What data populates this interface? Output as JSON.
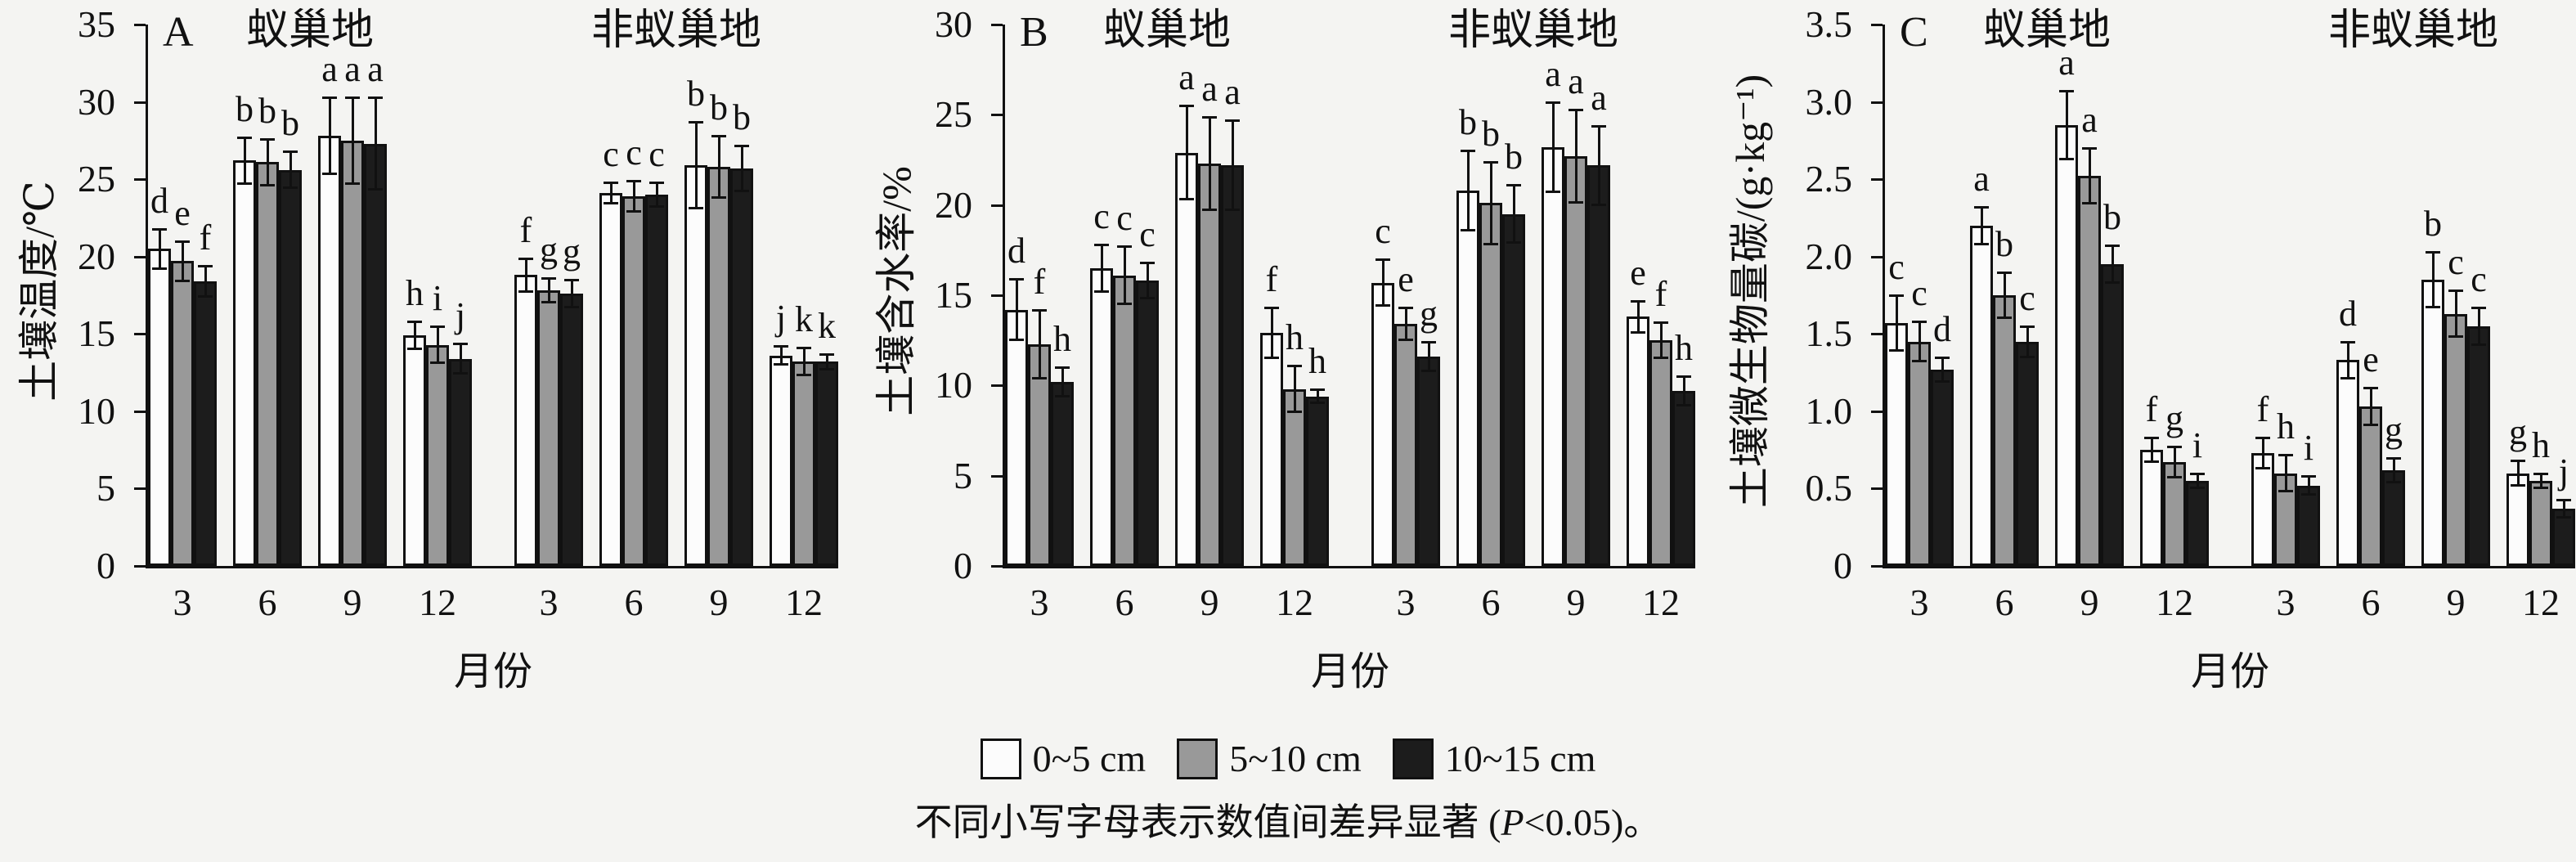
{
  "figure": {
    "background": "#f4f4f2",
    "xlabel": "月份",
    "legend": [
      {
        "label": "0~5 cm",
        "color": "#fcfcfc"
      },
      {
        "label": "5~10 cm",
        "color": "#999999"
      },
      {
        "label": "10~15 cm",
        "color": "#1c1c1c"
      }
    ],
    "caption": {
      "prefix": "不同小写字母表示数值间差异显著 (",
      "p": "P",
      "suffix": "<0.05)。"
    }
  },
  "chart_data": [
    {
      "type": "bar",
      "panel": "A",
      "ylabel": "土壤温度/℃",
      "xlabel": "月份",
      "ylim": [
        0,
        35
      ],
      "ytick_values": [
        0,
        5,
        10,
        15,
        20,
        25,
        30,
        35
      ],
      "ytick_labels": [
        "0",
        "5",
        "10",
        "15",
        "20",
        "25",
        "30",
        "35"
      ],
      "depths": [
        "0~5 cm",
        "5~10 cm",
        "10~15 cm"
      ],
      "sites": [
        {
          "label": "蚁巢地",
          "groups": [
            {
              "month": "3",
              "values": [
                20.5,
                19.7,
                18.4
              ],
              "errors": [
                1.3,
                1.3,
                1.0
              ],
              "letters": [
                "d",
                "e",
                "f"
              ]
            },
            {
              "month": "6",
              "values": [
                26.2,
                26.1,
                25.6
              ],
              "errors": [
                1.5,
                1.5,
                1.2
              ],
              "letters": [
                "b",
                "b",
                "b"
              ]
            },
            {
              "month": "9",
              "values": [
                27.8,
                27.5,
                27.3
              ],
              "errors": [
                2.5,
                2.8,
                3.0
              ],
              "letters": [
                "a",
                "a",
                "a"
              ]
            },
            {
              "month": "12",
              "values": [
                14.9,
                14.3,
                13.4
              ],
              "errors": [
                0.9,
                1.2,
                1.0
              ],
              "letters": [
                "h",
                "i",
                "j"
              ]
            }
          ]
        },
        {
          "label": "非蚁巢地",
          "groups": [
            {
              "month": "3",
              "values": [
                18.8,
                17.8,
                17.6
              ],
              "errors": [
                1.1,
                0.8,
                0.9
              ],
              "letters": [
                "f",
                "g",
                "g"
              ]
            },
            {
              "month": "6",
              "values": [
                24.1,
                23.9,
                24.0
              ],
              "errors": [
                0.7,
                1.0,
                0.8
              ],
              "letters": [
                "c",
                "c",
                "c"
              ]
            },
            {
              "month": "9",
              "values": [
                25.9,
                25.8,
                25.7
              ],
              "errors": [
                2.8,
                2.0,
                1.5
              ],
              "letters": [
                "b",
                "b",
                "b"
              ]
            },
            {
              "month": "12",
              "values": [
                13.6,
                13.2,
                13.2
              ],
              "errors": [
                0.6,
                0.9,
                0.5
              ],
              "letters": [
                "j",
                "k",
                "k"
              ]
            }
          ]
        }
      ]
    },
    {
      "type": "bar",
      "panel": "B",
      "ylabel": "土壤含水率/%",
      "xlabel": "月份",
      "ylim": [
        0,
        30
      ],
      "ytick_values": [
        0,
        5,
        10,
        15,
        20,
        25,
        30
      ],
      "ytick_labels": [
        "0",
        "5",
        "10",
        "15",
        "20",
        "25",
        "30"
      ],
      "depths": [
        "0~5 cm",
        "5~10 cm",
        "10~15 cm"
      ],
      "sites": [
        {
          "label": "蚁巢地",
          "groups": [
            {
              "month": "3",
              "values": [
                14.2,
                12.3,
                10.2
              ],
              "errors": [
                1.7,
                1.9,
                0.8
              ],
              "letters": [
                "d",
                "f",
                "h"
              ]
            },
            {
              "month": "6",
              "values": [
                16.5,
                16.1,
                15.8
              ],
              "errors": [
                1.3,
                1.6,
                1.0
              ],
              "letters": [
                "c",
                "c",
                "c"
              ]
            },
            {
              "month": "9",
              "values": [
                22.9,
                22.3,
                22.2
              ],
              "errors": [
                2.6,
                2.6,
                2.5
              ],
              "letters": [
                "a",
                "a",
                "a"
              ]
            },
            {
              "month": "12",
              "values": [
                12.9,
                9.8,
                9.4
              ],
              "errors": [
                1.4,
                1.3,
                0.4
              ],
              "letters": [
                "f",
                "h",
                "h"
              ]
            }
          ]
        },
        {
          "label": "非蚁巢地",
          "groups": [
            {
              "month": "3",
              "values": [
                15.7,
                13.4,
                11.6
              ],
              "errors": [
                1.3,
                0.9,
                0.8
              ],
              "letters": [
                "c",
                "e",
                "g"
              ]
            },
            {
              "month": "6",
              "values": [
                20.8,
                20.1,
                19.5
              ],
              "errors": [
                2.2,
                2.3,
                1.6
              ],
              "letters": [
                "b",
                "b",
                "b"
              ]
            },
            {
              "month": "9",
              "values": [
                23.2,
                22.7,
                22.2
              ],
              "errors": [
                2.5,
                2.6,
                2.2
              ],
              "letters": [
                "a",
                "a",
                "a"
              ]
            },
            {
              "month": "12",
              "values": [
                13.8,
                12.5,
                9.7
              ],
              "errors": [
                0.9,
                1.0,
                0.8
              ],
              "letters": [
                "e",
                "f",
                "h"
              ]
            }
          ]
        }
      ]
    },
    {
      "type": "bar",
      "panel": "C",
      "ylabel": "土壤微生物量碳/(g·kg⁻¹)",
      "xlabel": "月份",
      "ylim": [
        0,
        3.5
      ],
      "ytick_values": [
        0,
        0.5,
        1.0,
        1.5,
        2.0,
        2.5,
        3.0,
        3.5
      ],
      "ytick_labels": [
        "0",
        "0.5",
        "1.0",
        "1.5",
        "2.0",
        "2.5",
        "3.0",
        "3.5"
      ],
      "depths": [
        "0~5 cm",
        "5~10 cm",
        "10~15 cm"
      ],
      "sites": [
        {
          "label": "蚁巢地",
          "groups": [
            {
              "month": "3",
              "values": [
                1.57,
                1.45,
                1.27
              ],
              "errors": [
                0.18,
                0.13,
                0.08
              ],
              "letters": [
                "c",
                "c",
                "d"
              ]
            },
            {
              "month": "6",
              "values": [
                2.2,
                1.75,
                1.45
              ],
              "errors": [
                0.12,
                0.15,
                0.1
              ],
              "letters": [
                "a",
                "b",
                "c"
              ]
            },
            {
              "month": "9",
              "values": [
                2.85,
                2.52,
                1.95
              ],
              "errors": [
                0.22,
                0.18,
                0.12
              ],
              "letters": [
                "a",
                "a",
                "b"
              ]
            },
            {
              "month": "12",
              "values": [
                0.75,
                0.67,
                0.55
              ],
              "errors": [
                0.08,
                0.1,
                0.05
              ],
              "letters": [
                "f",
                "g",
                "i"
              ]
            }
          ]
        },
        {
          "label": "非蚁巢地",
          "groups": [
            {
              "month": "3",
              "values": [
                0.73,
                0.6,
                0.52
              ],
              "errors": [
                0.1,
                0.12,
                0.06
              ],
              "letters": [
                "f",
                "h",
                "i"
              ]
            },
            {
              "month": "6",
              "values": [
                1.33,
                1.03,
                0.62
              ],
              "errors": [
                0.12,
                0.12,
                0.08
              ],
              "letters": [
                "d",
                "e",
                "g"
              ]
            },
            {
              "month": "9",
              "values": [
                1.85,
                1.63,
                1.55
              ],
              "errors": [
                0.18,
                0.15,
                0.12
              ],
              "letters": [
                "b",
                "c",
                "c"
              ]
            },
            {
              "month": "12",
              "values": [
                0.6,
                0.55,
                0.37
              ],
              "errors": [
                0.08,
                0.05,
                0.06
              ],
              "letters": [
                "g",
                "h",
                "j"
              ]
            }
          ]
        }
      ]
    }
  ]
}
